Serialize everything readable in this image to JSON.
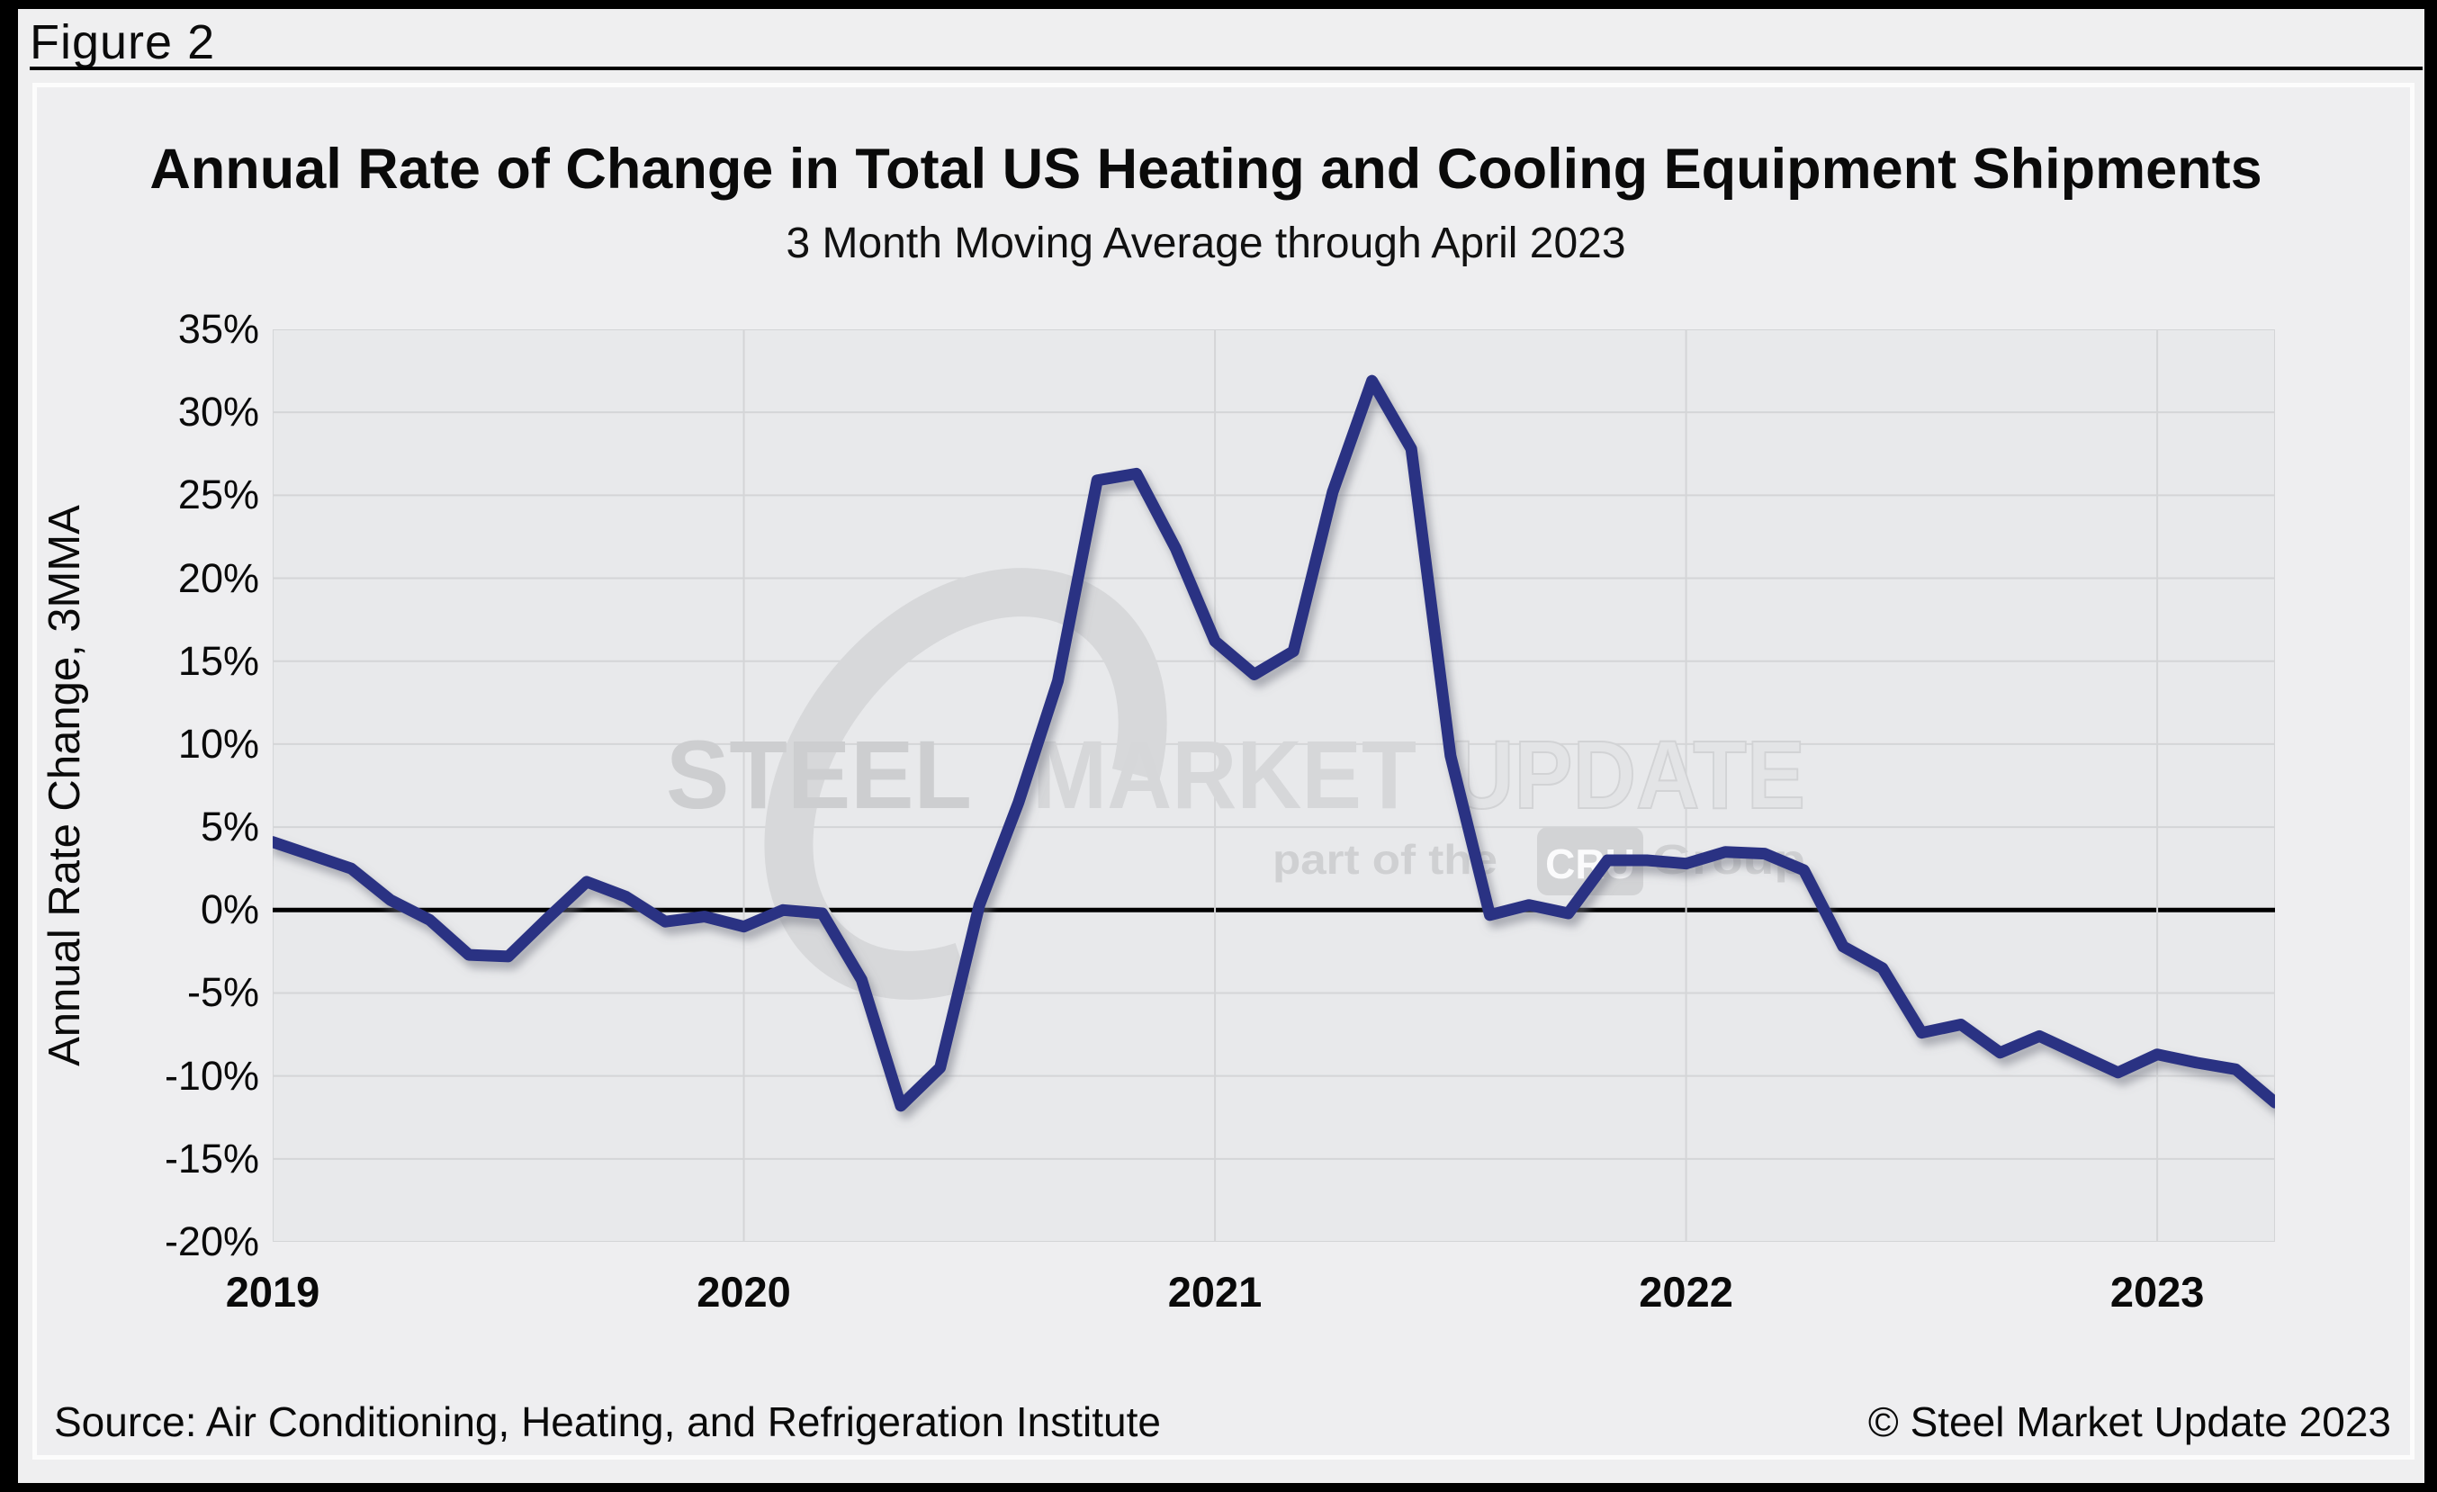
{
  "figure_label": "Figure 2",
  "chart_data": {
    "type": "line",
    "title": "Annual Rate of Change in Total US Heating and Cooling Equipment Shipments",
    "subtitle": "3 Month Moving Average through April 2023",
    "ylabel": "Annual Rate Change, 3MMA",
    "x_start": "2019-01",
    "x_end": "2023-04",
    "ylim": [
      -20,
      35
    ],
    "y_tick_step_pct": 5,
    "y_tick_labels": [
      "35%",
      "30%",
      "25%",
      "20%",
      "15%",
      "10%",
      "5%",
      "0%",
      "-5%",
      "-10%",
      "-15%",
      "-20%"
    ],
    "x_tick_labels": [
      "2019",
      "2020",
      "2021",
      "2022",
      "2023"
    ],
    "x_tick_month_indices": [
      0,
      12,
      24,
      36,
      48
    ],
    "year_order": [
      "2019",
      "2020",
      "2021",
      "2022",
      "2023"
    ],
    "values_pct_by_year": {
      "2019": [
        4.1,
        3.3,
        2.5,
        0.6,
        -0.6,
        -2.7,
        -2.8,
        -0.5,
        1.7,
        0.8,
        -0.7,
        -0.4
      ],
      "2020": [
        -1.0,
        0.0,
        -0.2,
        -4.2,
        -11.8,
        -9.5,
        0.3,
        6.5,
        13.8,
        25.9,
        26.3,
        21.8
      ],
      "2021": [
        16.2,
        14.2,
        15.6,
        25.2,
        31.9,
        27.8,
        9.3,
        -0.3,
        0.3,
        -0.2,
        3.0,
        3.0
      ],
      "2022": [
        2.8,
        3.5,
        3.4,
        2.4,
        -2.2,
        -3.5,
        -7.4,
        -6.9,
        -8.6,
        -7.6,
        -8.7,
        -9.8
      ],
      "2023": [
        -8.7,
        -9.2,
        -9.6,
        -11.6
      ]
    },
    "grid": true,
    "legend": "none",
    "line_color": "#2b3383",
    "zero_line_color": "#000000",
    "grid_color": "#d4d5d7",
    "plot_bg_color": "#e8e9eb"
  },
  "watermark": {
    "word_steel": "STEEL",
    "word_market": "MARKET",
    "word_update": "UPDATE",
    "part_of_the": "part of the",
    "cru": "CRU",
    "group": "Group"
  },
  "footer": {
    "source": "Source: Air Conditioning, Heating, and Refrigeration Institute",
    "copyright": "© Steel Market Update 2023"
  }
}
